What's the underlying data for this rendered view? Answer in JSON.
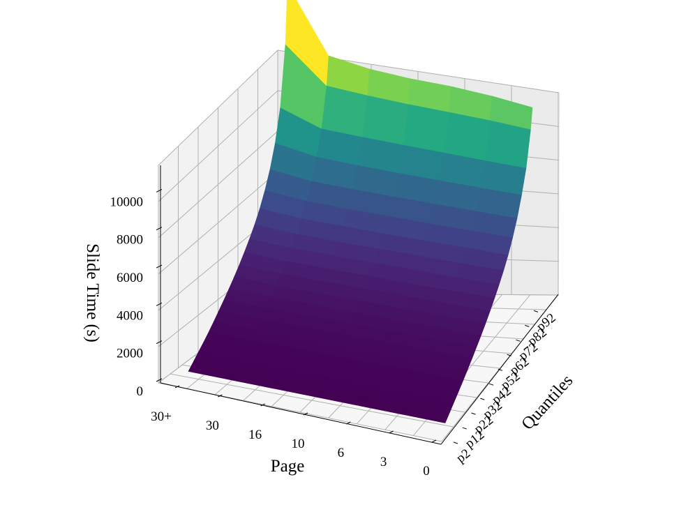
{
  "chart_data": {
    "type": "surface",
    "title": "",
    "xlabel": "Page",
    "ylabel": "Quantiles",
    "zlabel": "Slide Time (s)",
    "x_ticks": [
      "30+",
      "30",
      "16",
      "10",
      "6",
      "3",
      "0"
    ],
    "y_ticks": [
      "p2",
      "p12",
      "p22",
      "p32",
      "p42",
      "p52",
      "p62",
      "p72",
      "p82",
      "p92"
    ],
    "z_ticks": [
      "0",
      "2000",
      "4000",
      "6000",
      "8000",
      "10000"
    ],
    "zlim": [
      0,
      11000
    ],
    "grid": true,
    "colormap": "viridis",
    "quantiles": [
      2,
      7,
      12,
      17,
      22,
      27,
      32,
      37,
      42,
      47,
      52,
      57,
      62,
      67,
      72,
      77,
      82,
      87,
      92,
      97,
      99
    ],
    "pages": [
      "30+",
      "30",
      "16",
      "10",
      "6",
      "3",
      "0"
    ],
    "values": [
      [
        20,
        40,
        60,
        80,
        120,
        180,
        260,
        340,
        440,
        560,
        700,
        880,
        1090,
        1350,
        1700,
        2170,
        2800,
        3700,
        5100,
        8000,
        11000
      ],
      [
        20,
        40,
        60,
        80,
        110,
        160,
        230,
        300,
        380,
        480,
        610,
        770,
        960,
        1200,
        1520,
        1950,
        2500,
        3300,
        4300,
        6100,
        7500
      ],
      [
        20,
        40,
        60,
        80,
        110,
        150,
        220,
        290,
        370,
        470,
        590,
        740,
        930,
        1160,
        1470,
        1880,
        2420,
        3180,
        4180,
        5900,
        7100
      ],
      [
        20,
        40,
        60,
        80,
        110,
        150,
        210,
        280,
        360,
        460,
        580,
        720,
        900,
        1130,
        1430,
        1830,
        2360,
        3100,
        4080,
        5750,
        6900
      ],
      [
        20,
        40,
        60,
        80,
        110,
        150,
        210,
        280,
        350,
        450,
        570,
        710,
        890,
        1110,
        1400,
        1790,
        2310,
        3040,
        3990,
        5640,
        6800
      ],
      [
        20,
        40,
        60,
        80,
        110,
        150,
        210,
        270,
        350,
        440,
        560,
        700,
        870,
        1090,
        1380,
        1760,
        2270,
        2980,
        3900,
        5520,
        6600
      ],
      [
        20,
        40,
        60,
        80,
        110,
        150,
        200,
        270,
        340,
        430,
        550,
        690,
        860,
        1070,
        1350,
        1730,
        2230,
        2930,
        3820,
        5350,
        6300
      ]
    ]
  }
}
